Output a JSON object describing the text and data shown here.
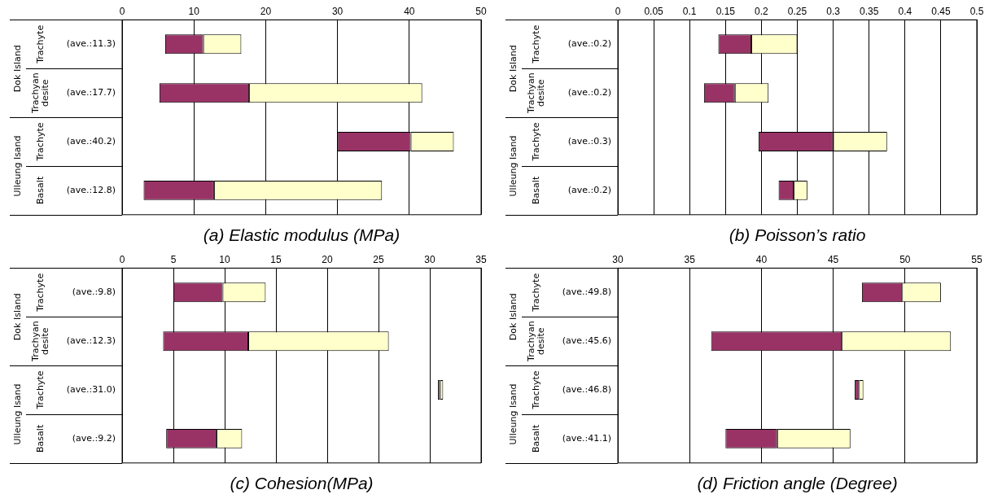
{
  "chart_data": [
    {
      "type": "bar",
      "orientation": "horizontal",
      "title": "(a) Elastic modulus (MPa)",
      "categories": [
        "(ave.:11.3)",
        "(ave.:17.7)",
        "(ave.:40.2)",
        "(ave.:12.8)"
      ],
      "series": [
        {
          "color": "#993366",
          "base": [
            6.0,
            5.2,
            30.0,
            3.0
          ],
          "values": [
            5.3,
            12.5,
            10.2,
            9.8
          ]
        },
        {
          "color": "#ffffcc",
          "base": [
            11.3,
            17.7,
            40.2,
            12.8
          ],
          "values": [
            5.3,
            24.1,
            6.0,
            23.4
          ]
        }
      ],
      "xlim": [
        0,
        50
      ],
      "xticks": [
        0,
        10,
        20,
        30,
        40,
        50
      ],
      "grid": "x",
      "annotations": [
        "Trachyte",
        "Trachyan desite",
        "Trachyte",
        "Basalt",
        "Dok Island",
        "Ulleung Isand"
      ]
    },
    {
      "type": "bar",
      "orientation": "horizontal",
      "title": "(b) Poisson’s ratio",
      "categories": [
        "(ave.:0.2)",
        "(ave.:0.2)",
        "(ave.:0.3)",
        "(ave.:0.2)"
      ],
      "series": [
        {
          "color": "#993366",
          "base": [
            0.14,
            0.12,
            0.196,
            0.224
          ],
          "values": [
            0.046,
            0.043,
            0.104,
            0.021
          ]
        },
        {
          "color": "#ffffcc",
          "base": [
            0.186,
            0.163,
            0.3,
            0.245
          ],
          "values": [
            0.064,
            0.047,
            0.075,
            0.019
          ]
        }
      ],
      "xlim": [
        0,
        0.5
      ],
      "xticks": [
        0,
        0.05,
        0.1,
        0.15,
        0.2,
        0.25,
        0.3,
        0.35,
        0.4,
        0.45,
        0.5
      ],
      "grid": "x",
      "annotations": [
        "Trachyte",
        "Trachyan desite",
        "Trachyte",
        "Basalt",
        "Dok Island",
        "Ulleung Isand"
      ]
    },
    {
      "type": "bar",
      "orientation": "horizontal",
      "title": "(c) Cohesion(MPa)",
      "categories": [
        "(ave.:9.8)",
        "(ave.:12.3)",
        "(ave.:31.0)",
        "(ave.:9.2)"
      ],
      "series": [
        {
          "color": "#993366",
          "base": [
            5.0,
            4.0,
            30.8,
            4.3
          ],
          "values": [
            4.8,
            8.3,
            0.2,
            4.9
          ]
        },
        {
          "color": "#ffffcc",
          "base": [
            9.8,
            12.3,
            31.0,
            9.2
          ],
          "values": [
            4.2,
            13.7,
            0.3,
            2.5
          ]
        }
      ],
      "xlim": [
        0,
        35
      ],
      "xticks": [
        0,
        5,
        10,
        15,
        20,
        25,
        30,
        35
      ],
      "grid": "x",
      "annotations": [
        "Trachyte",
        "Trachyan desite",
        "Trachyte",
        "Basalt",
        "Dok Island",
        "Ulleung Isand"
      ]
    },
    {
      "type": "bar",
      "orientation": "horizontal",
      "title": "(d) Friction angle (Degree)",
      "categories": [
        "(ave.:49.8)",
        "(ave.:45.6)",
        "(ave.:46.8)",
        "(ave.:41.1)"
      ],
      "series": [
        {
          "color": "#993366",
          "base": [
            47.0,
            36.5,
            46.5,
            37.5
          ],
          "values": [
            2.8,
            9.1,
            0.3,
            3.6
          ]
        },
        {
          "color": "#ffffcc",
          "base": [
            49.8,
            45.6,
            46.8,
            41.1
          ],
          "values": [
            2.7,
            7.6,
            0.3,
            5.1
          ]
        }
      ],
      "xlim": [
        30,
        55
      ],
      "xticks": [
        30,
        35,
        40,
        45,
        50,
        55
      ],
      "grid": "x",
      "annotations": [
        "Trachyte",
        "Trachyan desite",
        "Trachyte",
        "Basalt",
        "Dok Island",
        "Ulleung Isand"
      ]
    }
  ]
}
